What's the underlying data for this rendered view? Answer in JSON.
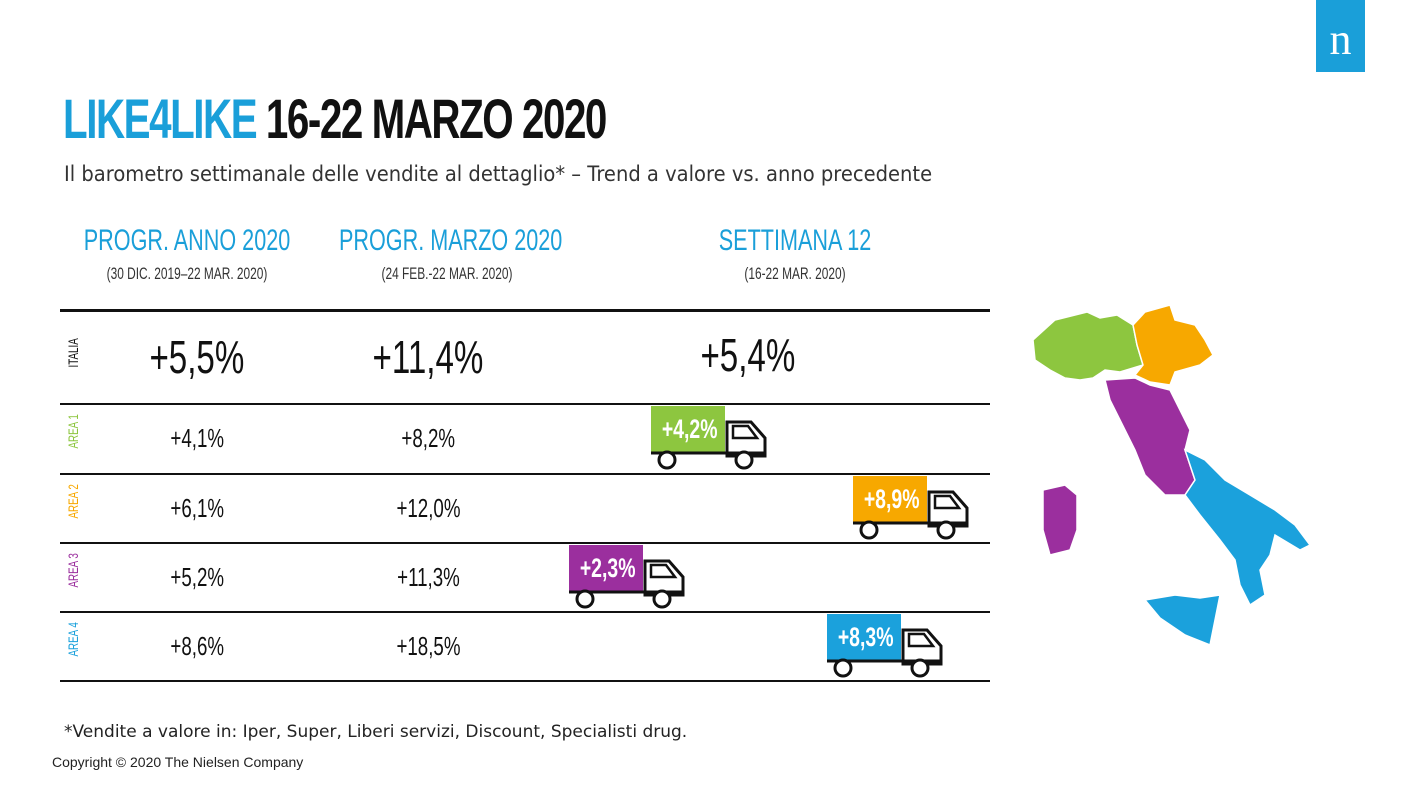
{
  "brand": {
    "logo_letter": "n",
    "logo_color": "#1a9fd9"
  },
  "title": {
    "accent": "LIKE4LIKE",
    "main": " 16-22 MARZO 2020"
  },
  "subtitle": "Il barometro settimanale delle vendite al dettaglio* – Trend a valore vs. anno precedente",
  "colors": {
    "accent": "#1a9fd9",
    "area1": "#8dc63f",
    "area2": "#f7a800",
    "area3": "#9b2f9e",
    "area4": "#1ba1dc",
    "area4_label": "#e8263c"
  },
  "chart_data": {
    "type": "table",
    "columns": [
      {
        "title": "PROGR. ANNO 2020",
        "period": "(30 DIC. 2019–22 MAR. 2020)"
      },
      {
        "title": "PROGR. MARZO 2020",
        "period": "(24 FEB.-22 MAR. 2020)"
      },
      {
        "title": "SETTIMANA 12",
        "period": "(16-22 MAR. 2020)"
      }
    ],
    "rows": [
      {
        "label": "ITALIA",
        "anno": "+5,5%",
        "marzo": "+11,4%",
        "settimana": "+5,4%",
        "value": 5.4,
        "color": "#111111"
      },
      {
        "label": "AREA 1",
        "anno": "+4,1%",
        "marzo": "+8,2%",
        "settimana": "+4,2%",
        "value": 4.2,
        "color": "#8dc63f"
      },
      {
        "label": "AREA 2",
        "anno": "+6,1%",
        "marzo": "+12,0%",
        "settimana": "+8,9%",
        "value": 8.9,
        "color": "#f7a800"
      },
      {
        "label": "AREA 3",
        "anno": "+5,2%",
        "marzo": "+11,3%",
        "settimana": "+2,3%",
        "value": 2.3,
        "color": "#9b2f9e"
      },
      {
        "label": "AREA 4",
        "anno": "+8,6%",
        "marzo": "+18,5%",
        "settimana": "+8,3%",
        "value": 8.3,
        "color": "#1ba1dc"
      }
    ]
  },
  "footnote": "*Vendite a valore in: Iper, Super, Liberi servizi, Discount, Specialisti drug.",
  "copyright": "Copyright © 2020 The Nielsen Company"
}
